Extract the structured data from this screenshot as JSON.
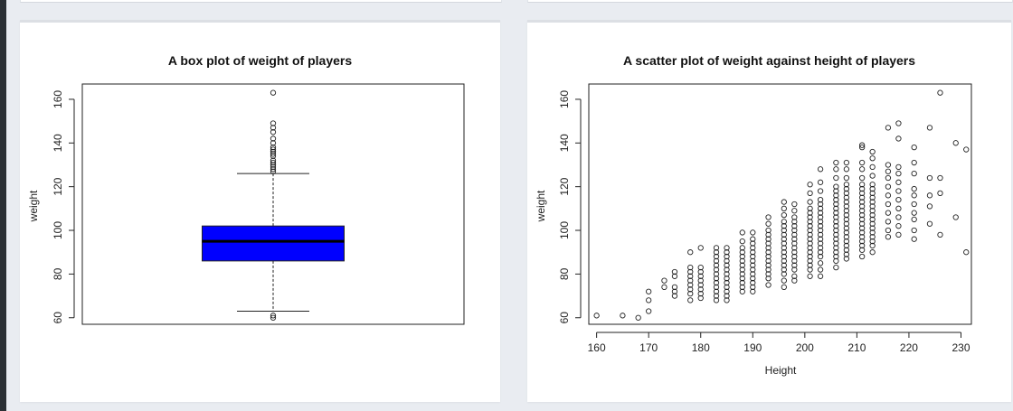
{
  "chart_data": [
    {
      "type": "box",
      "title": "A box plot of weight of players",
      "ylabel": "weight",
      "xlabel": "",
      "ylim": [
        57,
        167
      ],
      "yticks": [
        "60",
        "80",
        "100",
        "120",
        "140",
        "160"
      ],
      "stats": {
        "whisker_low": 63,
        "q1": 86,
        "median": 95,
        "q3": 102,
        "whisker_high": 126
      },
      "fill_color": "#0000ff",
      "outliers_high": [
        127,
        128,
        129,
        130,
        131,
        132,
        134,
        135,
        136,
        137,
        138,
        140,
        142,
        145,
        147,
        149,
        163
      ],
      "outliers_low": [
        60,
        61
      ]
    },
    {
      "type": "scatter",
      "title": "A scatter plot of weight against height of players",
      "xlabel": "Height",
      "ylabel": "weight",
      "xlim": [
        158.5,
        232
      ],
      "ylim": [
        57,
        167
      ],
      "xticks": [
        "160",
        "170",
        "180",
        "190",
        "200",
        "210",
        "220",
        "230"
      ],
      "yticks": [
        "60",
        "80",
        "100",
        "120",
        "140",
        "160"
      ],
      "points": [
        [
          160,
          61
        ],
        [
          165,
          61
        ],
        [
          168,
          60
        ],
        [
          170,
          63
        ],
        [
          170,
          68
        ],
        [
          170,
          72
        ],
        [
          173,
          74
        ],
        [
          173,
          77
        ],
        [
          175,
          70
        ],
        [
          175,
          72
        ],
        [
          175,
          74
        ],
        [
          175,
          79
        ],
        [
          175,
          81
        ],
        [
          178,
          68
        ],
        [
          178,
          71
        ],
        [
          178,
          73
        ],
        [
          178,
          75
        ],
        [
          178,
          77
        ],
        [
          178,
          79
        ],
        [
          178,
          81
        ],
        [
          178,
          83
        ],
        [
          178,
          90
        ],
        [
          180,
          69
        ],
        [
          180,
          71
        ],
        [
          180,
          73
        ],
        [
          180,
          75
        ],
        [
          180,
          77
        ],
        [
          180,
          79
        ],
        [
          180,
          81
        ],
        [
          180,
          83
        ],
        [
          180,
          92
        ],
        [
          183,
          68
        ],
        [
          183,
          70
        ],
        [
          183,
          72
        ],
        [
          183,
          74
        ],
        [
          183,
          76
        ],
        [
          183,
          78
        ],
        [
          183,
          80
        ],
        [
          183,
          82
        ],
        [
          183,
          84
        ],
        [
          183,
          86
        ],
        [
          183,
          88
        ],
        [
          183,
          90
        ],
        [
          183,
          92
        ],
        [
          185,
          68
        ],
        [
          185,
          70
        ],
        [
          185,
          72
        ],
        [
          185,
          74
        ],
        [
          185,
          76
        ],
        [
          185,
          78
        ],
        [
          185,
          80
        ],
        [
          185,
          82
        ],
        [
          185,
          84
        ],
        [
          185,
          86
        ],
        [
          185,
          88
        ],
        [
          185,
          90
        ],
        [
          185,
          92
        ],
        [
          188,
          72
        ],
        [
          188,
          74
        ],
        [
          188,
          76
        ],
        [
          188,
          78
        ],
        [
          188,
          80
        ],
        [
          188,
          82
        ],
        [
          188,
          84
        ],
        [
          188,
          86
        ],
        [
          188,
          88
        ],
        [
          188,
          90
        ],
        [
          188,
          92
        ],
        [
          188,
          95
        ],
        [
          188,
          99
        ],
        [
          190,
          72
        ],
        [
          190,
          74
        ],
        [
          190,
          76
        ],
        [
          190,
          78
        ],
        [
          190,
          80
        ],
        [
          190,
          82
        ],
        [
          190,
          84
        ],
        [
          190,
          86
        ],
        [
          190,
          88
        ],
        [
          190,
          90
        ],
        [
          190,
          92
        ],
        [
          190,
          94
        ],
        [
          190,
          96
        ],
        [
          190,
          99
        ],
        [
          193,
          75
        ],
        [
          193,
          78
        ],
        [
          193,
          80
        ],
        [
          193,
          82
        ],
        [
          193,
          84
        ],
        [
          193,
          86
        ],
        [
          193,
          88
        ],
        [
          193,
          90
        ],
        [
          193,
          92
        ],
        [
          193,
          94
        ],
        [
          193,
          96
        ],
        [
          193,
          98
        ],
        [
          193,
          100
        ],
        [
          193,
          103
        ],
        [
          193,
          106
        ],
        [
          196,
          74
        ],
        [
          196,
          77
        ],
        [
          196,
          80
        ],
        [
          196,
          82
        ],
        [
          196,
          84
        ],
        [
          196,
          86
        ],
        [
          196,
          88
        ],
        [
          196,
          90
        ],
        [
          196,
          92
        ],
        [
          196,
          94
        ],
        [
          196,
          96
        ],
        [
          196,
          98
        ],
        [
          196,
          100
        ],
        [
          196,
          102
        ],
        [
          196,
          104
        ],
        [
          196,
          107
        ],
        [
          196,
          110
        ],
        [
          196,
          113
        ],
        [
          198,
          77
        ],
        [
          198,
          79
        ],
        [
          198,
          82
        ],
        [
          198,
          84
        ],
        [
          198,
          86
        ],
        [
          198,
          88
        ],
        [
          198,
          90
        ],
        [
          198,
          92
        ],
        [
          198,
          94
        ],
        [
          198,
          96
        ],
        [
          198,
          98
        ],
        [
          198,
          100
        ],
        [
          198,
          102
        ],
        [
          198,
          104
        ],
        [
          198,
          106
        ],
        [
          198,
          109
        ],
        [
          198,
          112
        ],
        [
          201,
          79
        ],
        [
          201,
          82
        ],
        [
          201,
          84
        ],
        [
          201,
          86
        ],
        [
          201,
          88
        ],
        [
          201,
          90
        ],
        [
          201,
          92
        ],
        [
          201,
          94
        ],
        [
          201,
          96
        ],
        [
          201,
          98
        ],
        [
          201,
          100
        ],
        [
          201,
          102
        ],
        [
          201,
          104
        ],
        [
          201,
          106
        ],
        [
          201,
          108
        ],
        [
          201,
          110
        ],
        [
          201,
          113
        ],
        [
          201,
          117
        ],
        [
          201,
          121
        ],
        [
          203,
          79
        ],
        [
          203,
          82
        ],
        [
          203,
          85
        ],
        [
          203,
          88
        ],
        [
          203,
          90
        ],
        [
          203,
          92
        ],
        [
          203,
          94
        ],
        [
          203,
          96
        ],
        [
          203,
          98
        ],
        [
          203,
          100
        ],
        [
          203,
          102
        ],
        [
          203,
          104
        ],
        [
          203,
          106
        ],
        [
          203,
          108
        ],
        [
          203,
          110
        ],
        [
          203,
          112
        ],
        [
          203,
          114
        ],
        [
          203,
          118
        ],
        [
          203,
          122
        ],
        [
          203,
          128
        ],
        [
          206,
          83
        ],
        [
          206,
          86
        ],
        [
          206,
          88
        ],
        [
          206,
          90
        ],
        [
          206,
          92
        ],
        [
          206,
          94
        ],
        [
          206,
          96
        ],
        [
          206,
          98
        ],
        [
          206,
          100
        ],
        [
          206,
          102
        ],
        [
          206,
          104
        ],
        [
          206,
          106
        ],
        [
          206,
          108
        ],
        [
          206,
          110
        ],
        [
          206,
          112
        ],
        [
          206,
          114
        ],
        [
          206,
          116
        ],
        [
          206,
          118
        ],
        [
          206,
          120
        ],
        [
          206,
          124
        ],
        [
          206,
          128
        ],
        [
          206,
          131
        ],
        [
          208,
          87
        ],
        [
          208,
          89
        ],
        [
          208,
          91
        ],
        [
          208,
          93
        ],
        [
          208,
          95
        ],
        [
          208,
          97
        ],
        [
          208,
          99
        ],
        [
          208,
          101
        ],
        [
          208,
          103
        ],
        [
          208,
          105
        ],
        [
          208,
          107
        ],
        [
          208,
          109
        ],
        [
          208,
          111
        ],
        [
          208,
          113
        ],
        [
          208,
          115
        ],
        [
          208,
          117
        ],
        [
          208,
          119
        ],
        [
          208,
          121
        ],
        [
          208,
          124
        ],
        [
          208,
          128
        ],
        [
          208,
          131
        ],
        [
          211,
          88
        ],
        [
          211,
          91
        ],
        [
          211,
          93
        ],
        [
          211,
          95
        ],
        [
          211,
          97
        ],
        [
          211,
          99
        ],
        [
          211,
          101
        ],
        [
          211,
          103
        ],
        [
          211,
          105
        ],
        [
          211,
          107
        ],
        [
          211,
          109
        ],
        [
          211,
          111
        ],
        [
          211,
          113
        ],
        [
          211,
          115
        ],
        [
          211,
          117
        ],
        [
          211,
          119
        ],
        [
          211,
          121
        ],
        [
          211,
          124
        ],
        [
          211,
          128
        ],
        [
          211,
          131
        ],
        [
          211,
          138
        ],
        [
          211,
          139
        ],
        [
          213,
          90
        ],
        [
          213,
          93
        ],
        [
          213,
          95
        ],
        [
          213,
          97
        ],
        [
          213,
          99
        ],
        [
          213,
          101
        ],
        [
          213,
          103
        ],
        [
          213,
          105
        ],
        [
          213,
          107
        ],
        [
          213,
          109
        ],
        [
          213,
          111
        ],
        [
          213,
          113
        ],
        [
          213,
          115
        ],
        [
          213,
          117
        ],
        [
          213,
          119
        ],
        [
          213,
          121
        ],
        [
          213,
          125
        ],
        [
          213,
          129
        ],
        [
          213,
          133
        ],
        [
          213,
          136
        ],
        [
          216,
          97
        ],
        [
          216,
          100
        ],
        [
          216,
          104
        ],
        [
          216,
          108
        ],
        [
          216,
          112
        ],
        [
          216,
          116
        ],
        [
          216,
          120
        ],
        [
          216,
          124
        ],
        [
          216,
          127
        ],
        [
          216,
          130
        ],
        [
          216,
          147
        ],
        [
          218,
          98
        ],
        [
          218,
          102
        ],
        [
          218,
          106
        ],
        [
          218,
          110
        ],
        [
          218,
          114
        ],
        [
          218,
          118
        ],
        [
          218,
          122
        ],
        [
          218,
          126
        ],
        [
          218,
          129
        ],
        [
          218,
          142
        ],
        [
          218,
          149
        ],
        [
          221,
          96
        ],
        [
          221,
          100
        ],
        [
          221,
          105
        ],
        [
          221,
          108
        ],
        [
          221,
          112
        ],
        [
          221,
          116
        ],
        [
          221,
          119
        ],
        [
          221,
          126
        ],
        [
          221,
          131
        ],
        [
          221,
          138
        ],
        [
          224,
          103
        ],
        [
          224,
          111
        ],
        [
          224,
          116
        ],
        [
          224,
          124
        ],
        [
          224,
          147
        ],
        [
          226,
          98
        ],
        [
          226,
          117
        ],
        [
          226,
          124
        ],
        [
          226,
          163
        ],
        [
          229,
          106
        ],
        [
          229,
          140
        ],
        [
          231,
          90
        ],
        [
          231,
          137
        ]
      ]
    }
  ]
}
